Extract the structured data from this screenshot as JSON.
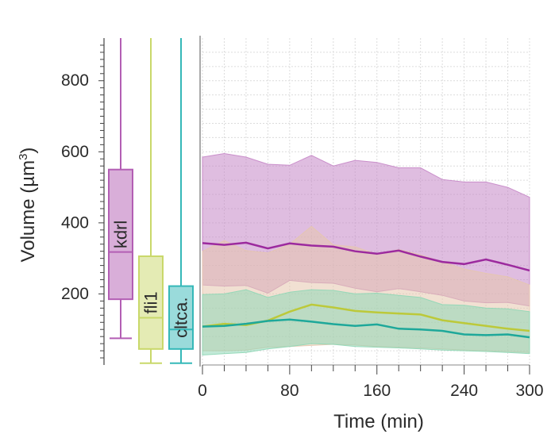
{
  "chart_data": {
    "type": "area",
    "xlabel": "Time (min)",
    "ylabel": "Volume (µm",
    "ylabel_sup": "3",
    "ylabel_close": ")",
    "xlim": [
      0,
      300
    ],
    "ylim": [
      0,
      920
    ],
    "x_ticks": [
      0,
      80,
      160,
      240,
      300
    ],
    "y_ticks": [
      200,
      400,
      600,
      800
    ],
    "grid": true,
    "boxplots": [
      {
        "name": "kdrl",
        "color": "#b35eb4",
        "whisker_low": 75,
        "q1": 185,
        "median": 318,
        "q3": 550,
        "whisker_high": 920
      },
      {
        "name": "fli1",
        "color": "#c9d86a",
        "whisker_low": 5,
        "q1": 45,
        "median": 133,
        "q3": 306,
        "whisker_high": 920
      },
      {
        "name": "cltca.",
        "color": "#35b8b8",
        "whisker_low": 5,
        "q1": 45,
        "median": 100,
        "q3": 222,
        "whisker_high": 920
      }
    ],
    "band_series": [
      {
        "name": "kdrl",
        "line_color": "#9c2a9e",
        "fill_color": "#c586c7",
        "x": [
          0,
          20,
          40,
          60,
          80,
          100,
          120,
          140,
          160,
          180,
          200,
          220,
          240,
          260,
          280,
          300
        ],
        "upper": [
          585,
          595,
          585,
          565,
          562,
          590,
          560,
          576,
          570,
          555,
          555,
          522,
          515,
          515,
          500,
          472
        ],
        "median": [
          343,
          338,
          344,
          328,
          342,
          336,
          333,
          320,
          313,
          322,
          305,
          290,
          284,
          297,
          282,
          266
        ],
        "lower": [
          225,
          222,
          224,
          202,
          238,
          232,
          230,
          216,
          206,
          215,
          206,
          196,
          180,
          175,
          176,
          166
        ]
      },
      {
        "name": "fli1",
        "line_color": "#bcc93a",
        "fill_color": "#e6c7ad",
        "x": [
          0,
          20,
          40,
          60,
          80,
          100,
          120,
          140,
          160,
          180,
          200,
          220,
          240,
          260,
          280,
          300
        ],
        "upper": [
          320,
          350,
          322,
          315,
          340,
          390,
          338,
          332,
          312,
          325,
          310,
          290,
          270,
          258,
          248,
          225
        ],
        "median": [
          108,
          116,
          112,
          125,
          150,
          170,
          162,
          152,
          148,
          145,
          142,
          126,
          118,
          110,
          102,
          96
        ],
        "lower": [
          40,
          40,
          42,
          50,
          52,
          55,
          58,
          56,
          52,
          50,
          48,
          45,
          42,
          40,
          38,
          35
        ]
      },
      {
        "name": "cltca.",
        "line_color": "#1ea89a",
        "fill_color": "#8fd7b6",
        "x": [
          0,
          20,
          40,
          60,
          80,
          100,
          120,
          140,
          160,
          180,
          200,
          220,
          240,
          260,
          280,
          300
        ],
        "upper": [
          198,
          200,
          212,
          190,
          205,
          212,
          210,
          200,
          202,
          196,
          190,
          170,
          168,
          160,
          158,
          150
        ],
        "median": [
          108,
          110,
          116,
          124,
          128,
          122,
          115,
          110,
          114,
          102,
          100,
          96,
          86,
          84,
          86,
          78
        ],
        "lower": [
          28,
          32,
          35,
          45,
          52,
          60,
          58,
          52,
          50,
          48,
          45,
          42,
          40,
          38,
          35,
          32
        ]
      }
    ]
  }
}
